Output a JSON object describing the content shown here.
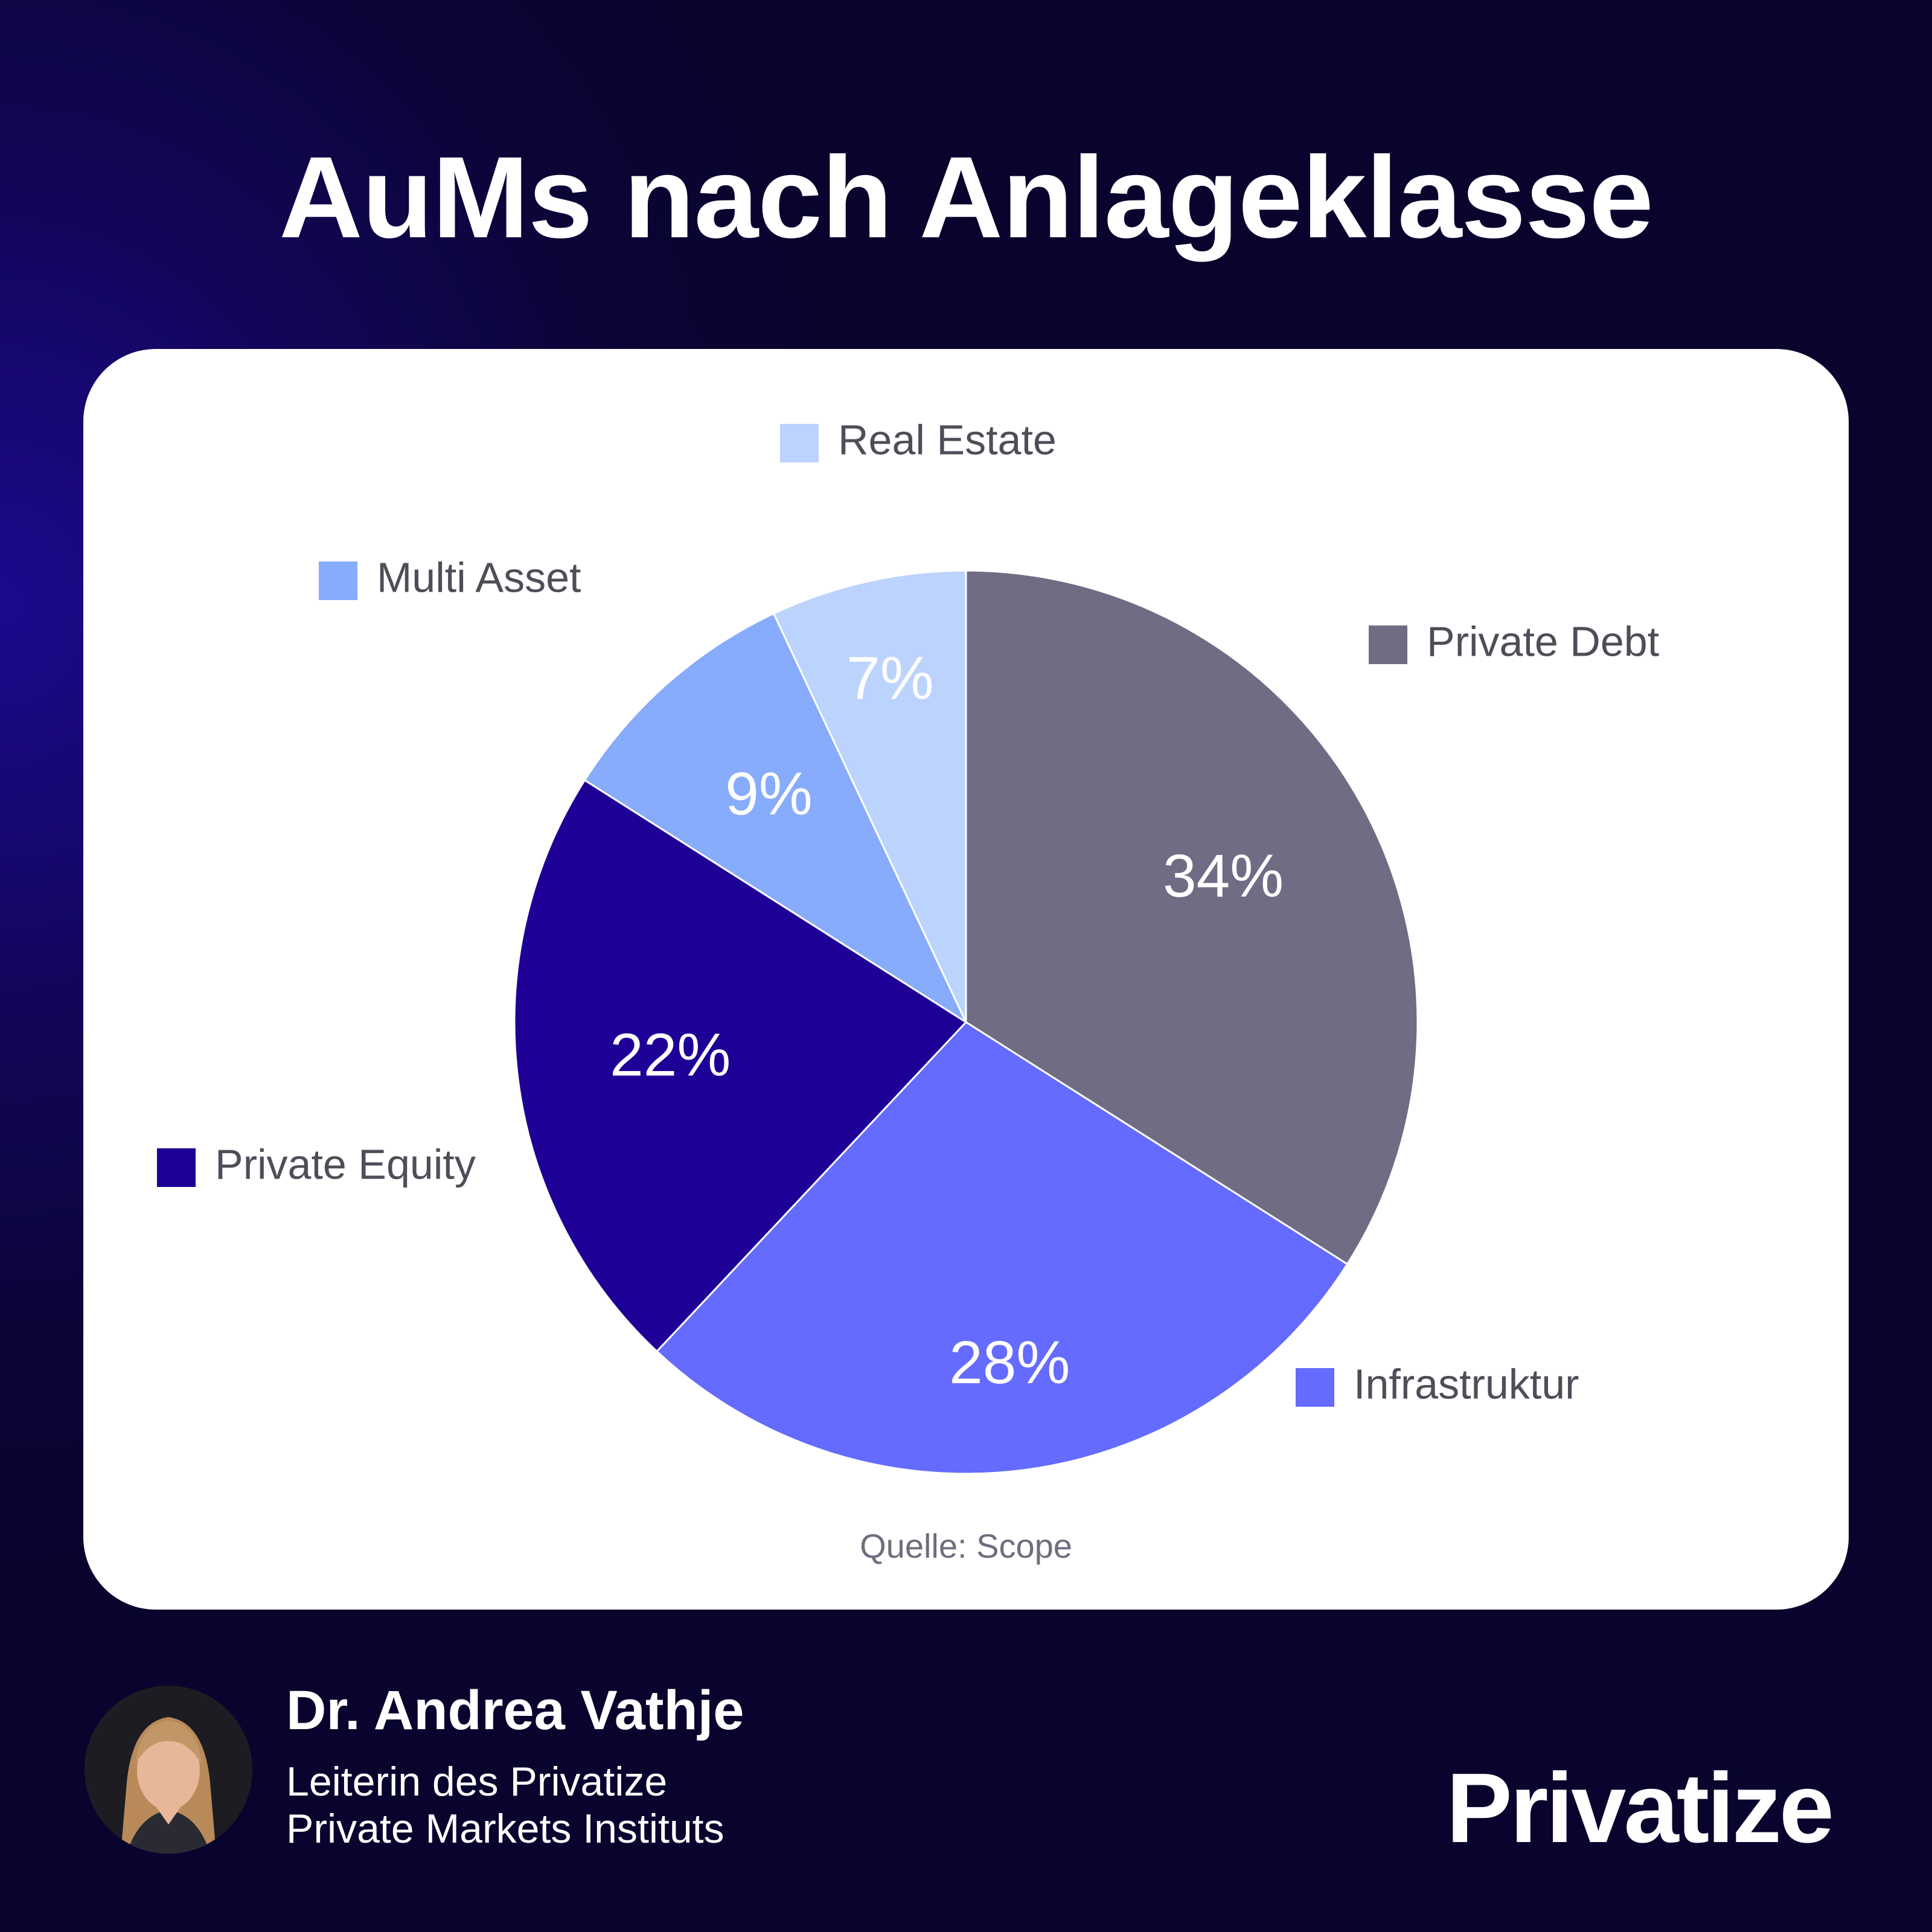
{
  "header": {
    "title": "AuMs nach Anlageklasse"
  },
  "chart_data": {
    "type": "pie",
    "title": "AuMs nach Anlageklasse",
    "unit": "%",
    "slices": [
      {
        "label": "Private Debt",
        "value": 34,
        "display": "34%",
        "color": "#6f6c84"
      },
      {
        "label": "Infrastruktur",
        "value": 28,
        "display": "28%",
        "color": "#646bfe"
      },
      {
        "label": "Private Equity",
        "value": 22,
        "display": "22%",
        "color": "#1e0097"
      },
      {
        "label": "Multi Asset",
        "value": 9,
        "display": "9%",
        "color": "#88acfc"
      },
      {
        "label": "Real Estate",
        "value": 7,
        "display": "7%",
        "color": "#bcd3fe"
      }
    ],
    "legend": "around the pie, next to each slice",
    "source": "Quelle: Scope"
  },
  "footer": {
    "author_name": "Dr. Andrea Vathje",
    "author_role_line1": "Leiterin des Privatize",
    "author_role_line2": "Private Markets Instituts",
    "brand": "Privatize"
  }
}
